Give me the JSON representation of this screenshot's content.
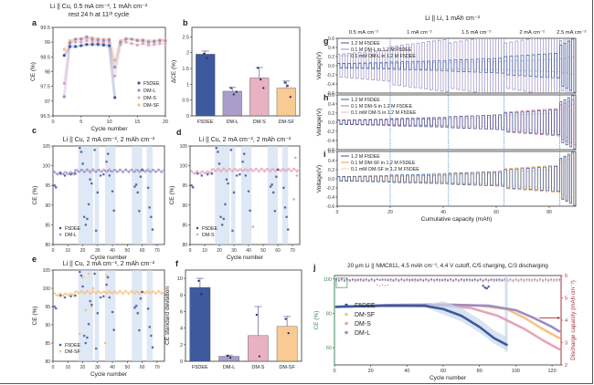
{
  "colors": {
    "F5DEE": "#3d5a9e",
    "DM-L": "#9c8cc4",
    "DM-S": "#e5a5b8",
    "DM-SF": "#f8c17e",
    "shade_blue": "#c9d8ee",
    "divider": "#2a6fa8",
    "ce_axis": "#3b8a5e",
    "cap_axis": "#a8323c"
  },
  "chart_data": [
    {
      "id": "a",
      "panel_label": "a",
      "type": "scatter",
      "title": "Li || Cu, 0.5 mA cm⁻², 1 mAh cm⁻²",
      "subtitle": "rest 24 h at 11ᵗʰ cycle",
      "xlabel": "Cycle number",
      "ylabel": "CE (%)",
      "xlim": [
        0,
        20
      ],
      "ylim": [
        96.5,
        99.5
      ],
      "xticks": [
        0,
        5,
        10,
        15,
        20
      ],
      "yticks": [
        96.5,
        97.0,
        97.5,
        98.0,
        98.5,
        99.0,
        99.5
      ],
      "legend": "bottom-right",
      "series": [
        {
          "name": "F5DEE",
          "x": [
            2,
            3,
            4,
            5,
            6,
            7,
            8,
            9,
            10,
            11
          ],
          "y": [
            98.55,
            98.85,
            98.85,
            98.88,
            98.92,
            98.92,
            98.92,
            98.9,
            98.88,
            97.12
          ]
        },
        {
          "name": "DM-L",
          "x": [
            2,
            3,
            4,
            5,
            6,
            7,
            8,
            9,
            10,
            11,
            12,
            13,
            14,
            15,
            16,
            17,
            18,
            19,
            20
          ],
          "y": [
            97.15,
            98.98,
            99.1,
            99.1,
            99.18,
            99.1,
            99.08,
            99.06,
            99.08,
            98.15,
            99.0,
            99.1,
            99.1,
            99.05,
            99.05,
            99.0,
            99.02,
            99.05,
            99.05
          ]
        },
        {
          "name": "DM-S",
          "x": [
            2,
            3,
            4,
            5,
            6,
            7,
            8,
            9,
            10,
            11,
            12,
            13,
            14,
            15,
            16,
            17,
            18,
            19,
            20
          ],
          "y": [
            97.6,
            98.95,
            99.0,
            99.0,
            99.05,
            99.02,
            99.0,
            98.98,
            99.0,
            97.85,
            98.92,
            99.0,
            98.95,
            98.9,
            98.95,
            98.9,
            98.92,
            98.95,
            98.95
          ]
        },
        {
          "name": "DM-SF",
          "x": [
            2,
            3,
            4,
            5,
            6,
            7,
            8,
            9,
            10,
            11,
            12,
            13,
            14,
            15,
            16,
            17,
            18,
            19,
            20
          ],
          "y": [
            98.75,
            99.05,
            99.1,
            99.12,
            99.12,
            99.15,
            99.12,
            99.1,
            99.1,
            98.4,
            99.05,
            99.12,
            99.1,
            99.08,
            99.08,
            99.05,
            99.05,
            99.08,
            99.08
          ]
        }
      ]
    },
    {
      "id": "b",
      "panel_label": "b",
      "type": "bar",
      "xlabel": "",
      "ylabel": "ΔCE (%)",
      "ylim": [
        0,
        2.8
      ],
      "yticks": [
        0.0,
        0.5,
        1.0,
        1.5,
        2.0,
        2.5
      ],
      "categories": [
        "F5DEE",
        "DM-L",
        "DM-S",
        "DM-SF"
      ],
      "values": [
        1.95,
        0.78,
        1.2,
        0.88
      ],
      "errors": [
        0.1,
        0.12,
        0.33,
        0.22
      ],
      "points": [
        [
          1.97,
          1.83
        ],
        [
          0.88,
          0.68,
          0.76
        ],
        [
          1.52,
          1.15,
          0.88
        ],
        [
          1.05,
          0.95,
          0.6
        ]
      ]
    },
    {
      "id": "c",
      "panel_label": "c",
      "type": "scatter",
      "title": "Li || Cu, 2 mA cm⁻², 2 mAh cm⁻²",
      "xlabel": "Cycle number",
      "ylabel": "CE (%)",
      "xlim": [
        0,
        75
      ],
      "ylim": [
        80,
        105
      ],
      "xticks": [
        0,
        10,
        20,
        30,
        40,
        50,
        60,
        70
      ],
      "yticks": [
        80,
        85,
        90,
        95,
        100,
        105
      ],
      "legend": "bottom-left",
      "series": [
        {
          "name": "F5DEE",
          "x": [
            1,
            2,
            5,
            8,
            12,
            15,
            18,
            19,
            20,
            21,
            22,
            23,
            24,
            25,
            26,
            28,
            29,
            30,
            32,
            34,
            36,
            37,
            38,
            40,
            41,
            55,
            56,
            57,
            58,
            59,
            60,
            64,
            65,
            66,
            67
          ],
          "y": [
            95,
            94.5,
            98,
            97.5,
            97.8,
            98,
            104.5,
            103.5,
            100.5,
            87,
            85,
            86.5,
            90.2,
            96.5,
            95.5,
            104,
            83.5,
            93.2,
            97.5,
            97.8,
            101,
            103,
            97.5,
            93.5,
            88.6,
            94.7,
            95.2,
            93.2,
            88.5,
            97.2,
            99,
            94.4,
            89.4,
            87,
            83.8
          ]
        },
        {
          "name": "DM-L",
          "trend": 98.7
        }
      ]
    },
    {
      "id": "d",
      "panel_label": "d",
      "type": "scatter",
      "title": "Li || Cu, 2 mA cm⁻², 2 mAh cm⁻²",
      "xlabel": "Cycle number",
      "ylabel": "CE (%)",
      "xlim": [
        0,
        75
      ],
      "ylim": [
        80,
        105
      ],
      "xticks": [
        0,
        10,
        20,
        30,
        40,
        50,
        60,
        70
      ],
      "yticks": [
        80,
        85,
        90,
        95,
        100,
        105
      ],
      "legend": "bottom-left",
      "series": [
        {
          "name": "F5DEE",
          "x": [
            1,
            2,
            5,
            8,
            12,
            15,
            18,
            19,
            20,
            21,
            22,
            23,
            24,
            25,
            26,
            28,
            29,
            30,
            32,
            34,
            36,
            37,
            38,
            40,
            41,
            55,
            56,
            57,
            58,
            59,
            60,
            64,
            65,
            66,
            67
          ],
          "y": [
            95,
            94.5,
            98,
            97.5,
            97.8,
            98,
            104.5,
            103.5,
            100.5,
            87,
            85,
            86.5,
            90.2,
            96.5,
            95.5,
            104,
            83.5,
            93.2,
            97.5,
            97.8,
            101,
            103,
            97.5,
            93.5,
            88.6,
            94.7,
            95.2,
            93.2,
            88.5,
            97.2,
            99,
            94.4,
            89.4,
            87,
            83.8
          ]
        },
        {
          "name": "DM-S",
          "trend": 98.9,
          "outliers_x": [
            43,
            71,
            72,
            73
          ],
          "outliers_y": [
            84.5,
            91.5,
            102,
            97.5
          ]
        }
      ]
    },
    {
      "id": "e",
      "panel_label": "e",
      "type": "scatter",
      "title": "Li || Cu, 2 mA cm⁻², 2 mAh cm⁻²",
      "xlabel": "Cycle number",
      "ylabel": "CE (%)",
      "xlim": [
        0,
        75
      ],
      "ylim": [
        80,
        105
      ],
      "xticks": [
        0,
        10,
        20,
        30,
        40,
        50,
        60,
        70
      ],
      "yticks": [
        80,
        85,
        90,
        95,
        100,
        105
      ],
      "legend": "bottom-left",
      "series": [
        {
          "name": "F5DEE",
          "x": [
            1,
            2,
            5,
            8,
            12,
            15,
            18,
            19,
            20,
            21,
            22,
            23,
            24,
            25,
            26,
            28,
            29,
            30,
            32,
            34,
            36,
            37,
            38,
            40,
            41,
            55,
            56,
            57,
            58,
            59,
            60,
            64,
            65,
            66,
            67
          ],
          "y": [
            95,
            94.5,
            98,
            97.5,
            97.8,
            98,
            104.5,
            103.5,
            100.5,
            87,
            85,
            86.5,
            90.2,
            96.5,
            95.5,
            104,
            83.5,
            93.2,
            97.5,
            97.8,
            101,
            103,
            97.5,
            93.5,
            88.6,
            94.7,
            95.2,
            93.2,
            88.5,
            97.2,
            99,
            94.4,
            89.4,
            87,
            83.8
          ]
        },
        {
          "name": "DM-SF",
          "trend": 98.9,
          "outliers_x": [
            18,
            20,
            22,
            24,
            26,
            27,
            35,
            36
          ],
          "outliers_y": [
            87.5,
            103,
            94,
            104,
            95,
            100,
            85,
            103.5
          ]
        }
      ]
    },
    {
      "id": "f",
      "panel_label": "f",
      "type": "bar",
      "xlabel": "",
      "ylabel": "CE standard deviation",
      "ylim": [
        0,
        11
      ],
      "yticks": [
        0,
        2,
        4,
        6,
        8,
        10
      ],
      "categories": [
        "F5DEE",
        "DM-L",
        "DM-S",
        "DM-SF"
      ],
      "values": [
        8.9,
        0.6,
        3.1,
        4.2
      ],
      "errors": [
        1.1,
        0.15,
        3.5,
        1.2
      ],
      "points": [
        [
          9.7,
          8.1
        ],
        [
          0.65,
          0.45
        ],
        [
          5.6,
          0.6
        ],
        [
          5.1,
          3.4
        ]
      ]
    },
    {
      "id": "ghi",
      "type": "line",
      "title": "Li || Li, 1 mAh cm⁻²",
      "rate_labels": [
        "0.5 mA cm⁻²",
        "1 mA cm⁻²",
        "1.5 mA cm⁻²",
        "2 mA cm⁻²",
        "2.5 mA cm⁻²"
      ],
      "rate_boundaries": [
        20,
        42,
        63,
        84
      ],
      "xlabel": "Cumulative capacity (mAh)",
      "ylabel": "Voltage(V)",
      "xlim": [
        0,
        90
      ],
      "ylim": [
        -0.6,
        0.6
      ],
      "xticks": [
        0,
        20,
        40,
        60,
        80
      ],
      "yticks": [
        -0.6,
        -0.4,
        -0.2,
        0.0,
        0.2,
        0.4,
        0.6
      ],
      "panels": [
        {
          "panel_label": "g",
          "additive": "DM-L",
          "legend": [
            "1.2 M F5DEE",
            "0.1 M DM-L in 1.2 M F5DEE",
            "0.1 mM DM-L in 1.2 M F5DEE"
          ],
          "amplitudes": {
            "F5DEE": [
              0.05,
              0.08,
              0.12,
              0.2,
              0.45
            ],
            "0.1 M": [
              0.25,
              0.42,
              0.5,
              0.5,
              0.55
            ],
            "0.1 mM": [
              0.04,
              0.05,
              0.07,
              0.1,
              0.15
            ]
          }
        },
        {
          "panel_label": "h",
          "additive": "DM-S",
          "legend": [
            "1.2 M F5DEE",
            "0.1 M DM-S in 1.2 M F5DEE",
            "0.1 mM DM-S in 1.2 M F5DEE"
          ],
          "amplitudes": {
            "F5DEE": [
              0.05,
              0.08,
              0.12,
              0.2,
              0.45
            ],
            "0.1 M": [
              0.04,
              0.06,
              0.12,
              0.22,
              0.38
            ],
            "0.1 mM": [
              0.04,
              0.05,
              0.08,
              0.15,
              0.3
            ]
          }
        },
        {
          "panel_label": "i",
          "additive": "DM-SF",
          "legend": [
            "1.2 M F5DEE",
            "0.1 M DM-SF in 1.2 M F5DEE",
            "0.1 mM DM-SF in 1.2 M F5DEE"
          ],
          "amplitudes": {
            "F5DEE": [
              0.05,
              0.08,
              0.12,
              0.2,
              0.45
            ],
            "0.1 M": [
              0.04,
              0.06,
              0.1,
              0.22,
              0.42
            ],
            "0.1 mM": [
              0.04,
              0.05,
              0.08,
              0.15,
              0.35
            ]
          }
        }
      ]
    },
    {
      "id": "j",
      "panel_label": "j",
      "type": "scatter",
      "title": "20 μm Li || NMC811, 4.5 mAh cm⁻², 4.4 V cutoff, C/5 charging, C/3 discharging",
      "xlabel": "Cycle number",
      "ylabel": "CE (%)",
      "y2label": "Discharge capacity (mAh cm⁻²)",
      "xlim": [
        0,
        125
      ],
      "ylim": [
        50,
        102
      ],
      "y2lim": [
        2,
        6
      ],
      "xticks": [
        0,
        20,
        40,
        60,
        80,
        100,
        120
      ],
      "yticks": [
        60,
        80,
        100
      ],
      "y2ticks": [
        2,
        3,
        4,
        5,
        6
      ],
      "legend": "left",
      "series": [
        {
          "name": "F5DEE",
          "ce": 99.5,
          "capacity": [
            [
              1,
              4.6
            ],
            [
              10,
              4.62
            ],
            [
              30,
              4.65
            ],
            [
              50,
              4.64
            ],
            [
              60,
              4.5
            ],
            [
              70,
              4.2
            ],
            [
              80,
              3.7
            ],
            [
              88,
              3.2
            ],
            [
              95,
              2.9
            ]
          ]
        },
        {
          "name": "DM-SF",
          "ce": 99.6,
          "capacity": [
            [
              1,
              4.6
            ],
            [
              10,
              4.62
            ],
            [
              30,
              4.68
            ],
            [
              60,
              4.7
            ],
            [
              80,
              4.65
            ],
            [
              95,
              4.5
            ],
            [
              105,
              4.1
            ],
            [
              115,
              3.6
            ],
            [
              124,
              3.2
            ]
          ]
        },
        {
          "name": "DM-S",
          "ce": 98.8,
          "capacity": [
            [
              1,
              4.6
            ],
            [
              10,
              4.62
            ],
            [
              30,
              4.66
            ],
            [
              60,
              4.65
            ],
            [
              75,
              4.55
            ],
            [
              90,
              4.2
            ],
            [
              105,
              3.6
            ],
            [
              115,
              3.1
            ],
            [
              124,
              2.7
            ]
          ]
        },
        {
          "name": "DM-L",
          "ce": 99.6,
          "capacity": [
            [
              1,
              4.6
            ],
            [
              10,
              4.62
            ],
            [
              30,
              4.68
            ],
            [
              60,
              4.7
            ],
            [
              85,
              4.65
            ],
            [
              100,
              4.45
            ],
            [
              110,
              4.1
            ],
            [
              120,
              3.7
            ],
            [
              124,
              3.5
            ]
          ]
        }
      ]
    }
  ]
}
